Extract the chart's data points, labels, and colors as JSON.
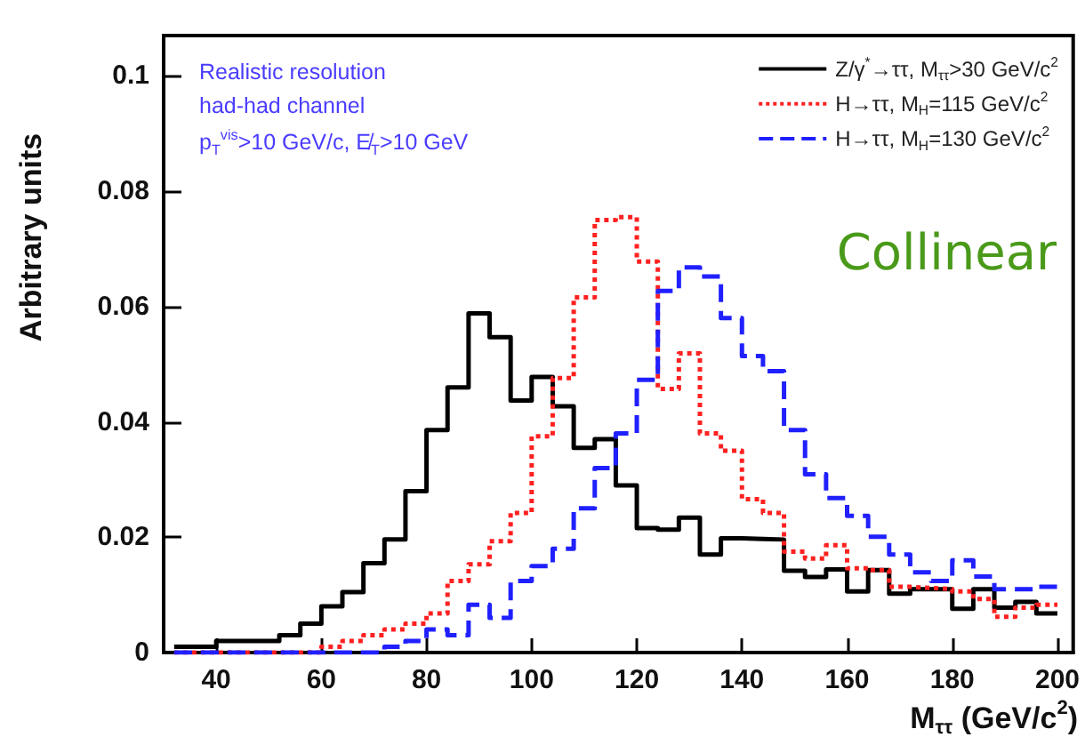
{
  "chart_data": {
    "type": "histogram",
    "xlabel": "M$_{ττ}$ (GeV/c$^{2}$)",
    "ylabel": "Arbitrary units",
    "bins": [
      32,
      36,
      40,
      44,
      48,
      52,
      56,
      60,
      64,
      68,
      72,
      76,
      80,
      84,
      88,
      92,
      96,
      100,
      104,
      108,
      112,
      116,
      120,
      124,
      128,
      132,
      136,
      140,
      144,
      148,
      152,
      156,
      160,
      164,
      168,
      172,
      176,
      180,
      184,
      188,
      192,
      196,
      200
    ],
    "series": [
      {
        "name": "Z/γ$^{*}$→ττ, M$_{ττ}$>30 GeV/c$^{2}$",
        "color": "#000000",
        "line_style": "solid",
        "values": [
          0.001,
          0.001,
          0.002,
          0.002,
          0.002,
          0.003,
          0.005,
          0.008,
          0.0105,
          0.0155,
          0.0196,
          0.028,
          0.0386,
          0.046,
          0.0588,
          0.0547,
          0.0437,
          0.0478,
          0.0427,
          0.0355,
          0.037,
          0.029,
          0.0216,
          0.0213,
          0.0234,
          0.017,
          0.0198,
          0.0197,
          0.0196,
          0.0142,
          0.0131,
          0.0144,
          0.0106,
          0.0143,
          0.0102,
          0.011,
          0.011,
          0.0076,
          0.011,
          0.0078,
          0.0088,
          0.0068
        ]
      },
      {
        "name": "H→ττ, M$_{H}$=115 GeV/c$^{2}$",
        "color": "#ff2020",
        "line_style": "dotted",
        "values": [
          0,
          0,
          0,
          0,
          0,
          0,
          0,
          0.001,
          0.002,
          0.003,
          0.004,
          0.005,
          0.0068,
          0.0124,
          0.0153,
          0.0193,
          0.0242,
          0.0375,
          0.0476,
          0.0616,
          0.075,
          0.0755,
          0.0678,
          0.0457,
          0.0519,
          0.038,
          0.035,
          0.0266,
          0.0242,
          0.0175,
          0.0163,
          0.0186,
          0.0146,
          0.0143,
          0.0114,
          0.0112,
          0.011,
          0.0106,
          0.0093,
          0.0062,
          0.0078,
          0.0083
        ]
      },
      {
        "name": "H→ττ, M$_{H}$=130 GeV/c$^{2}$",
        "color": "#2020ff",
        "line_style": "dashed",
        "values": [
          0,
          0,
          0,
          0,
          0,
          0,
          0,
          0,
          0,
          0,
          0.001,
          0.002,
          0.004,
          0.003,
          0.0083,
          0.006,
          0.0124,
          0.015,
          0.018,
          0.025,
          0.032,
          0.038,
          0.0473,
          0.0627,
          0.0668,
          0.0652,
          0.058,
          0.0514,
          0.0488,
          0.0386,
          0.0309,
          0.0268,
          0.0237,
          0.0201,
          0.017,
          0.0139,
          0.0124,
          0.016,
          0.0132,
          0.011,
          0.011,
          0.0114
        ]
      }
    ],
    "xlim": [
      30,
      203
    ],
    "xticks": [
      40,
      60,
      80,
      100,
      120,
      140,
      160,
      180,
      200
    ],
    "ylim": [
      0,
      0.107
    ],
    "yticks": [
      0,
      0.02,
      0.04,
      0.06,
      0.08,
      0.1
    ],
    "grid": false,
    "legend": "top right",
    "annotations": [
      "Realistic resolution",
      "had-had channel",
      "p$_{T}$$^{vis}$>10 GeV/c, E̸$_{T}$>10 GeV",
      "Collinear"
    ]
  }
}
